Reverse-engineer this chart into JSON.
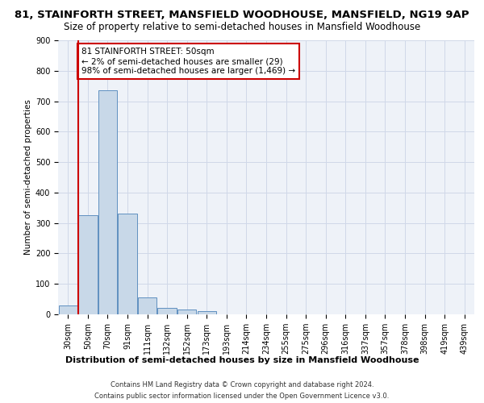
{
  "title1": "81, STAINFORTH STREET, MANSFIELD WOODHOUSE, MANSFIELD, NG19 9AP",
  "title2": "Size of property relative to semi-detached houses in Mansfield Woodhouse",
  "xlabel": "Distribution of semi-detached houses by size in Mansfield Woodhouse",
  "ylabel": "Number of semi-detached properties",
  "footnote1": "Contains HM Land Registry data © Crown copyright and database right 2024.",
  "footnote2": "Contains public sector information licensed under the Open Government Licence v3.0.",
  "categories": [
    "30sqm",
    "50sqm",
    "70sqm",
    "91sqm",
    "111sqm",
    "132sqm",
    "152sqm",
    "173sqm",
    "193sqm",
    "214sqm",
    "234sqm",
    "255sqm",
    "275sqm",
    "296sqm",
    "316sqm",
    "337sqm",
    "357sqm",
    "378sqm",
    "398sqm",
    "419sqm",
    "439sqm"
  ],
  "values": [
    30,
    325,
    735,
    330,
    55,
    20,
    15,
    10,
    0,
    0,
    0,
    0,
    0,
    0,
    0,
    0,
    0,
    0,
    0,
    0,
    0
  ],
  "bar_color": "#c8d8e8",
  "bar_edge_color": "#6090c0",
  "subject_line_color": "#cc0000",
  "ylim": [
    0,
    900
  ],
  "yticks": [
    0,
    100,
    200,
    300,
    400,
    500,
    600,
    700,
    800,
    900
  ],
  "annotation_text": "81 STAINFORTH STREET: 50sqm\n← 2% of semi-detached houses are smaller (29)\n98% of semi-detached houses are larger (1,469) →",
  "annotation_box_color": "#cc0000",
  "grid_color": "#d0d8e8",
  "bg_color": "#eef2f8",
  "title1_fontsize": 9.5,
  "title2_fontsize": 8.5,
  "ylabel_fontsize": 7.5,
  "tick_fontsize": 7,
  "annotation_fontsize": 7.5,
  "footnote_fontsize": 6.0,
  "xlabel_fontsize": 8.0
}
